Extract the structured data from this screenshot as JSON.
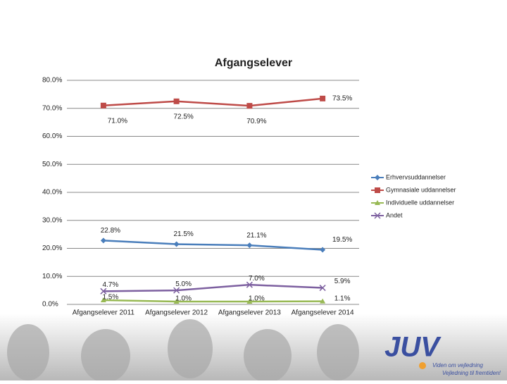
{
  "chart_data": {
    "type": "line",
    "title": "Afgangselever",
    "categories": [
      "Afgangselever 2011",
      "Afgangselever 2012",
      "Afgangselever 2013",
      "Afgangselever 2014"
    ],
    "series": [
      {
        "name": "Erhvervsuddannelser",
        "color": "#4a7ebb",
        "marker": "diamond",
        "values": [
          22.8,
          21.5,
          21.1,
          19.5
        ],
        "value_labels": [
          "22.8%",
          "21.5%",
          "21.1%",
          "19.5%"
        ]
      },
      {
        "name": "Gymnasiale uddannelser",
        "color": "#be4b48",
        "marker": "square",
        "values": [
          71.0,
          72.5,
          70.9,
          73.5
        ],
        "value_labels": [
          "71.0%",
          "72.5%",
          "70.9%",
          "73.5%"
        ]
      },
      {
        "name": "Individuelle uddannelser",
        "color": "#98b954",
        "marker": "triangle",
        "values": [
          1.5,
          1.0,
          1.0,
          1.1
        ],
        "value_labels": [
          "1.5%",
          "1.0%",
          "1.0%",
          "1.1%"
        ]
      },
      {
        "name": "Andet",
        "color": "#7d60a0",
        "marker": "x",
        "values": [
          4.7,
          5.0,
          7.0,
          5.9
        ],
        "value_labels": [
          "4.7%",
          "5.0%",
          "7.0%",
          "5.9%"
        ]
      }
    ],
    "ylim": [
      0,
      80
    ],
    "yticks": [
      {
        "value": 0,
        "label": "0.0%"
      },
      {
        "value": 10,
        "label": "10.0%"
      },
      {
        "value": 20,
        "label": "20.0%"
      },
      {
        "value": 30,
        "label": "30.0%"
      },
      {
        "value": 40,
        "label": "40.0%"
      },
      {
        "value": 50,
        "label": "50.0%"
      },
      {
        "value": 60,
        "label": "60.0%"
      },
      {
        "value": 70,
        "label": "70.0%"
      },
      {
        "value": 80,
        "label": "80.0%"
      }
    ],
    "grid": true,
    "legend": "right"
  },
  "footer": {
    "logo": "JUV",
    "tagline": [
      "Viden om vejledning",
      "Vejledning til fremtiden!"
    ]
  }
}
